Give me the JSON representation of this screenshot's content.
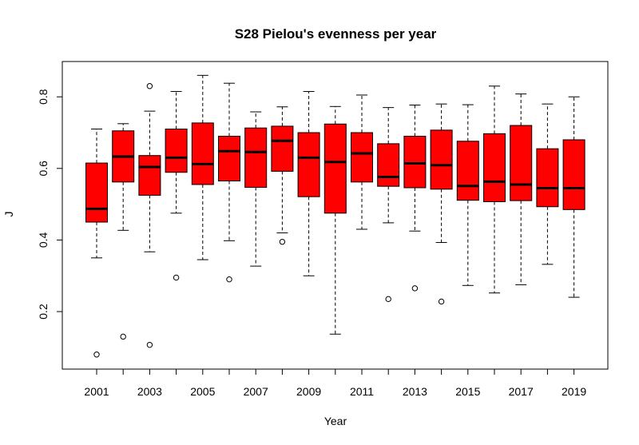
{
  "chart_data": {
    "type": "box",
    "title": "S28 Pielou's evenness per year",
    "xlabel": "Year",
    "ylabel": "J",
    "ylim": [
      0.05,
      0.9
    ],
    "yticks": [
      0.2,
      0.4,
      0.6,
      0.8
    ],
    "xtick_labels_shown": [
      "2001",
      "2003",
      "2005",
      "2007",
      "2009",
      "2011",
      "2013",
      "2015",
      "2017",
      "2019"
    ],
    "box_color": "#ff0000",
    "categories": [
      "2001",
      "2002",
      "2003",
      "2004",
      "2005",
      "2006",
      "2007",
      "2008",
      "2009",
      "2010",
      "2011",
      "2012",
      "2013",
      "2014",
      "2015",
      "2016",
      "2017",
      "2018",
      "2019"
    ],
    "boxes": [
      {
        "year": "2001",
        "whisker_low": 0.35,
        "q1": 0.45,
        "median": 0.487,
        "q3": 0.615,
        "whisker_high": 0.71,
        "outliers": [
          0.08
        ]
      },
      {
        "year": "2002",
        "whisker_low": 0.427,
        "q1": 0.562,
        "median": 0.633,
        "q3": 0.705,
        "whisker_high": 0.725,
        "outliers": [
          0.13
        ]
      },
      {
        "year": "2003",
        "whisker_low": 0.367,
        "q1": 0.525,
        "median": 0.604,
        "q3": 0.636,
        "whisker_high": 0.76,
        "outliers": [
          0.83,
          0.107
        ]
      },
      {
        "year": "2004",
        "whisker_low": 0.475,
        "q1": 0.589,
        "median": 0.63,
        "q3": 0.71,
        "whisker_high": 0.815,
        "outliers": [
          0.295
        ]
      },
      {
        "year": "2005",
        "whisker_low": 0.345,
        "q1": 0.555,
        "median": 0.612,
        "q3": 0.727,
        "whisker_high": 0.86,
        "outliers": []
      },
      {
        "year": "2006",
        "whisker_low": 0.398,
        "q1": 0.565,
        "median": 0.648,
        "q3": 0.69,
        "whisker_high": 0.838,
        "outliers": [
          0.29
        ]
      },
      {
        "year": "2007",
        "whisker_low": 0.327,
        "q1": 0.547,
        "median": 0.646,
        "q3": 0.713,
        "whisker_high": 0.758,
        "outliers": []
      },
      {
        "year": "2008",
        "whisker_low": 0.42,
        "q1": 0.592,
        "median": 0.677,
        "q3": 0.718,
        "whisker_high": 0.772,
        "outliers": [
          0.395
        ]
      },
      {
        "year": "2009",
        "whisker_low": 0.3,
        "q1": 0.521,
        "median": 0.63,
        "q3": 0.7,
        "whisker_high": 0.815,
        "outliers": []
      },
      {
        "year": "2010",
        "whisker_low": 0.137,
        "q1": 0.475,
        "median": 0.618,
        "q3": 0.724,
        "whisker_high": 0.773,
        "outliers": []
      },
      {
        "year": "2011",
        "whisker_low": 0.43,
        "q1": 0.562,
        "median": 0.642,
        "q3": 0.7,
        "whisker_high": 0.805,
        "outliers": []
      },
      {
        "year": "2012",
        "whisker_low": 0.448,
        "q1": 0.55,
        "median": 0.576,
        "q3": 0.669,
        "whisker_high": 0.77,
        "outliers": [
          0.235
        ]
      },
      {
        "year": "2013",
        "whisker_low": 0.425,
        "q1": 0.546,
        "median": 0.614,
        "q3": 0.69,
        "whisker_high": 0.777,
        "outliers": [
          0.265
        ]
      },
      {
        "year": "2014",
        "whisker_low": 0.393,
        "q1": 0.542,
        "median": 0.609,
        "q3": 0.707,
        "whisker_high": 0.78,
        "outliers": [
          0.228
        ]
      },
      {
        "year": "2015",
        "whisker_low": 0.273,
        "q1": 0.511,
        "median": 0.551,
        "q3": 0.676,
        "whisker_high": 0.778,
        "outliers": []
      },
      {
        "year": "2016",
        "whisker_low": 0.252,
        "q1": 0.507,
        "median": 0.563,
        "q3": 0.697,
        "whisker_high": 0.83,
        "outliers": []
      },
      {
        "year": "2017",
        "whisker_low": 0.275,
        "q1": 0.51,
        "median": 0.555,
        "q3": 0.72,
        "whisker_high": 0.808,
        "outliers": []
      },
      {
        "year": "2018",
        "whisker_low": 0.332,
        "q1": 0.493,
        "median": 0.545,
        "q3": 0.655,
        "whisker_high": 0.78,
        "outliers": []
      },
      {
        "year": "2019",
        "whisker_low": 0.24,
        "q1": 0.485,
        "median": 0.545,
        "q3": 0.68,
        "whisker_high": 0.8,
        "outliers": []
      }
    ]
  }
}
